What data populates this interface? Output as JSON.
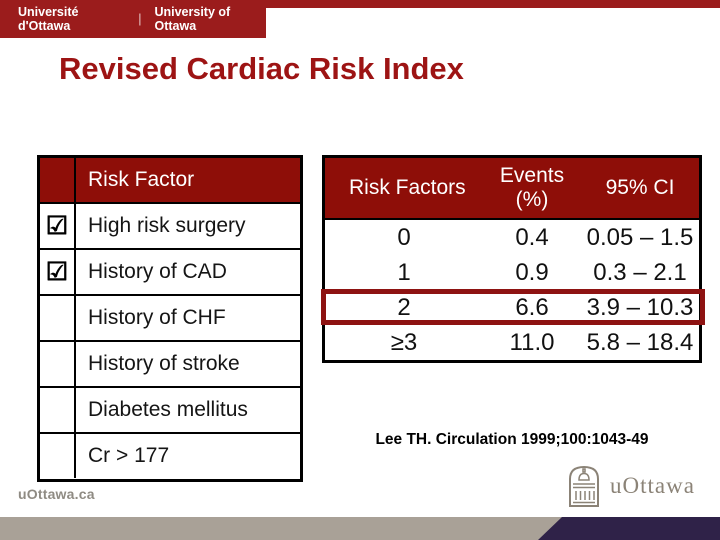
{
  "banner": {
    "name_fr": "Université d'Ottawa",
    "separator": "|",
    "name_en": "University of Ottawa"
  },
  "title": "Revised Cardiac Risk Index",
  "risk_factor_table": {
    "header": "Risk Factor",
    "checkbox_glyph": "☑",
    "rows": [
      {
        "checked": true,
        "label": "High risk surgery"
      },
      {
        "checked": true,
        "label": "History of CAD"
      },
      {
        "checked": false,
        "label": "History of CHF"
      },
      {
        "checked": false,
        "label": "History of stroke"
      },
      {
        "checked": false,
        "label": "Diabetes mellitus"
      },
      {
        "checked": false,
        "label": "Cr > 177"
      }
    ]
  },
  "events_table": {
    "header_col1": "Risk Factors",
    "header_col2_line1": "Events",
    "header_col2_line2": "(%)",
    "header_col3": "95% CI",
    "rows": [
      [
        "0",
        "0.4",
        "0.05 – 1.5"
      ],
      [
        "1",
        "0.9",
        "0.3 – 2.1"
      ],
      [
        "2",
        "6.6",
        "3.9 – 10.3"
      ],
      [
        "≥3",
        "11.0",
        "5.8 – 18.4"
      ]
    ],
    "highlighted_row_index": 2
  },
  "citation": "Lee TH. Circulation 1999;100:1043-49",
  "footer": {
    "website": "uOttawa.ca",
    "logo_text": "uOttawa",
    "logo_icon": "tabaret-hall-icon"
  },
  "colors": {
    "garnet_banner": "#9b1c1c",
    "garnet_table_header": "#8e0e08",
    "title_red": "#9d1414",
    "highlight_border": "#8e1312",
    "footer_gray": "#a9a197",
    "footer_purple": "#2f2248",
    "logo_gray": "#8b8377"
  }
}
